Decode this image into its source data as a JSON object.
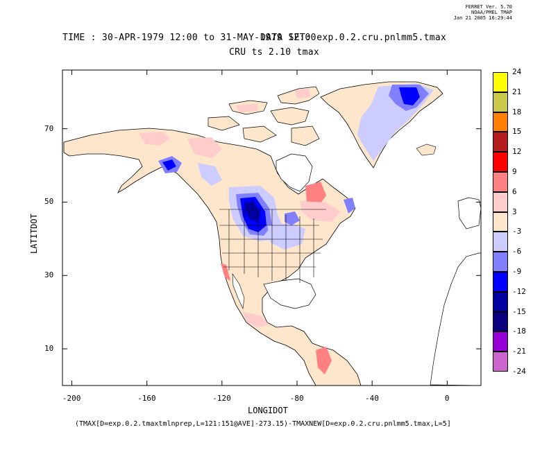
{
  "header": {
    "version": "FERRET Ver. 5.70",
    "org": "NOAA/PMEL TMAP",
    "date": "Jan 21 2005 16:29:44"
  },
  "titles": {
    "time_line": "TIME : 30-APR-1979 12:00 to 31-MAY-1979 12:00",
    "dataset_line": "DATA SET: exp.0.2.cru.pnlmm5.tmax",
    "subtitle": "CRU ts 2.10 tmax"
  },
  "axes": {
    "x_label": "LONGIDOT",
    "y_label": "LATITDOT",
    "x_ticks": [
      {
        "v": -200,
        "t": "-200"
      },
      {
        "v": -160,
        "t": "-160"
      },
      {
        "v": -120,
        "t": "-120"
      },
      {
        "v": -80,
        "t": "-80"
      },
      {
        "v": -40,
        "t": "-40"
      },
      {
        "v": 0,
        "t": "0"
      }
    ],
    "y_ticks": [
      {
        "v": 10,
        "t": "10"
      },
      {
        "v": 30,
        "t": "30"
      },
      {
        "v": 50,
        "t": "50"
      },
      {
        "v": 70,
        "t": "70"
      }
    ],
    "x_range": [
      -205,
      18
    ],
    "y_range": [
      0,
      86
    ]
  },
  "footer": {
    "expression": "(TMAX[D=exp.0.2.tmaxtmlnprep,L=121:151@AVE]-273.15)-TMAXNEW[D=exp.0.2.cru.pnlmm5.tmax,L=5]"
  },
  "colorbar": {
    "levels": [
      "24",
      "21",
      "18",
      "15",
      "12",
      "9",
      "6",
      "3",
      "-3",
      "-6",
      "-9",
      "-12",
      "-15",
      "-18",
      "-21",
      "-24"
    ],
    "colors": [
      "#ffff00",
      "#c8c84a",
      "#ff8000",
      "#b41e1e",
      "#ff0000",
      "#ff8080",
      "#ffcccc",
      "#fde6cc",
      "#ccccff",
      "#8080ff",
      "#0000ff",
      "#0000a0",
      "#0a0080",
      "#9600d6",
      "#cc66cc",
      "#ff00ff"
    ]
  },
  "legend_colors": {
    "land": "#fde6cc",
    "cool_light": "#ccccff",
    "cool_mid": "#8080ff",
    "cool_strong": "#0000ff",
    "cool_dark": "#0000a0",
    "warm_light": "#ffcccc",
    "warm_mid": "#ff8080"
  }
}
